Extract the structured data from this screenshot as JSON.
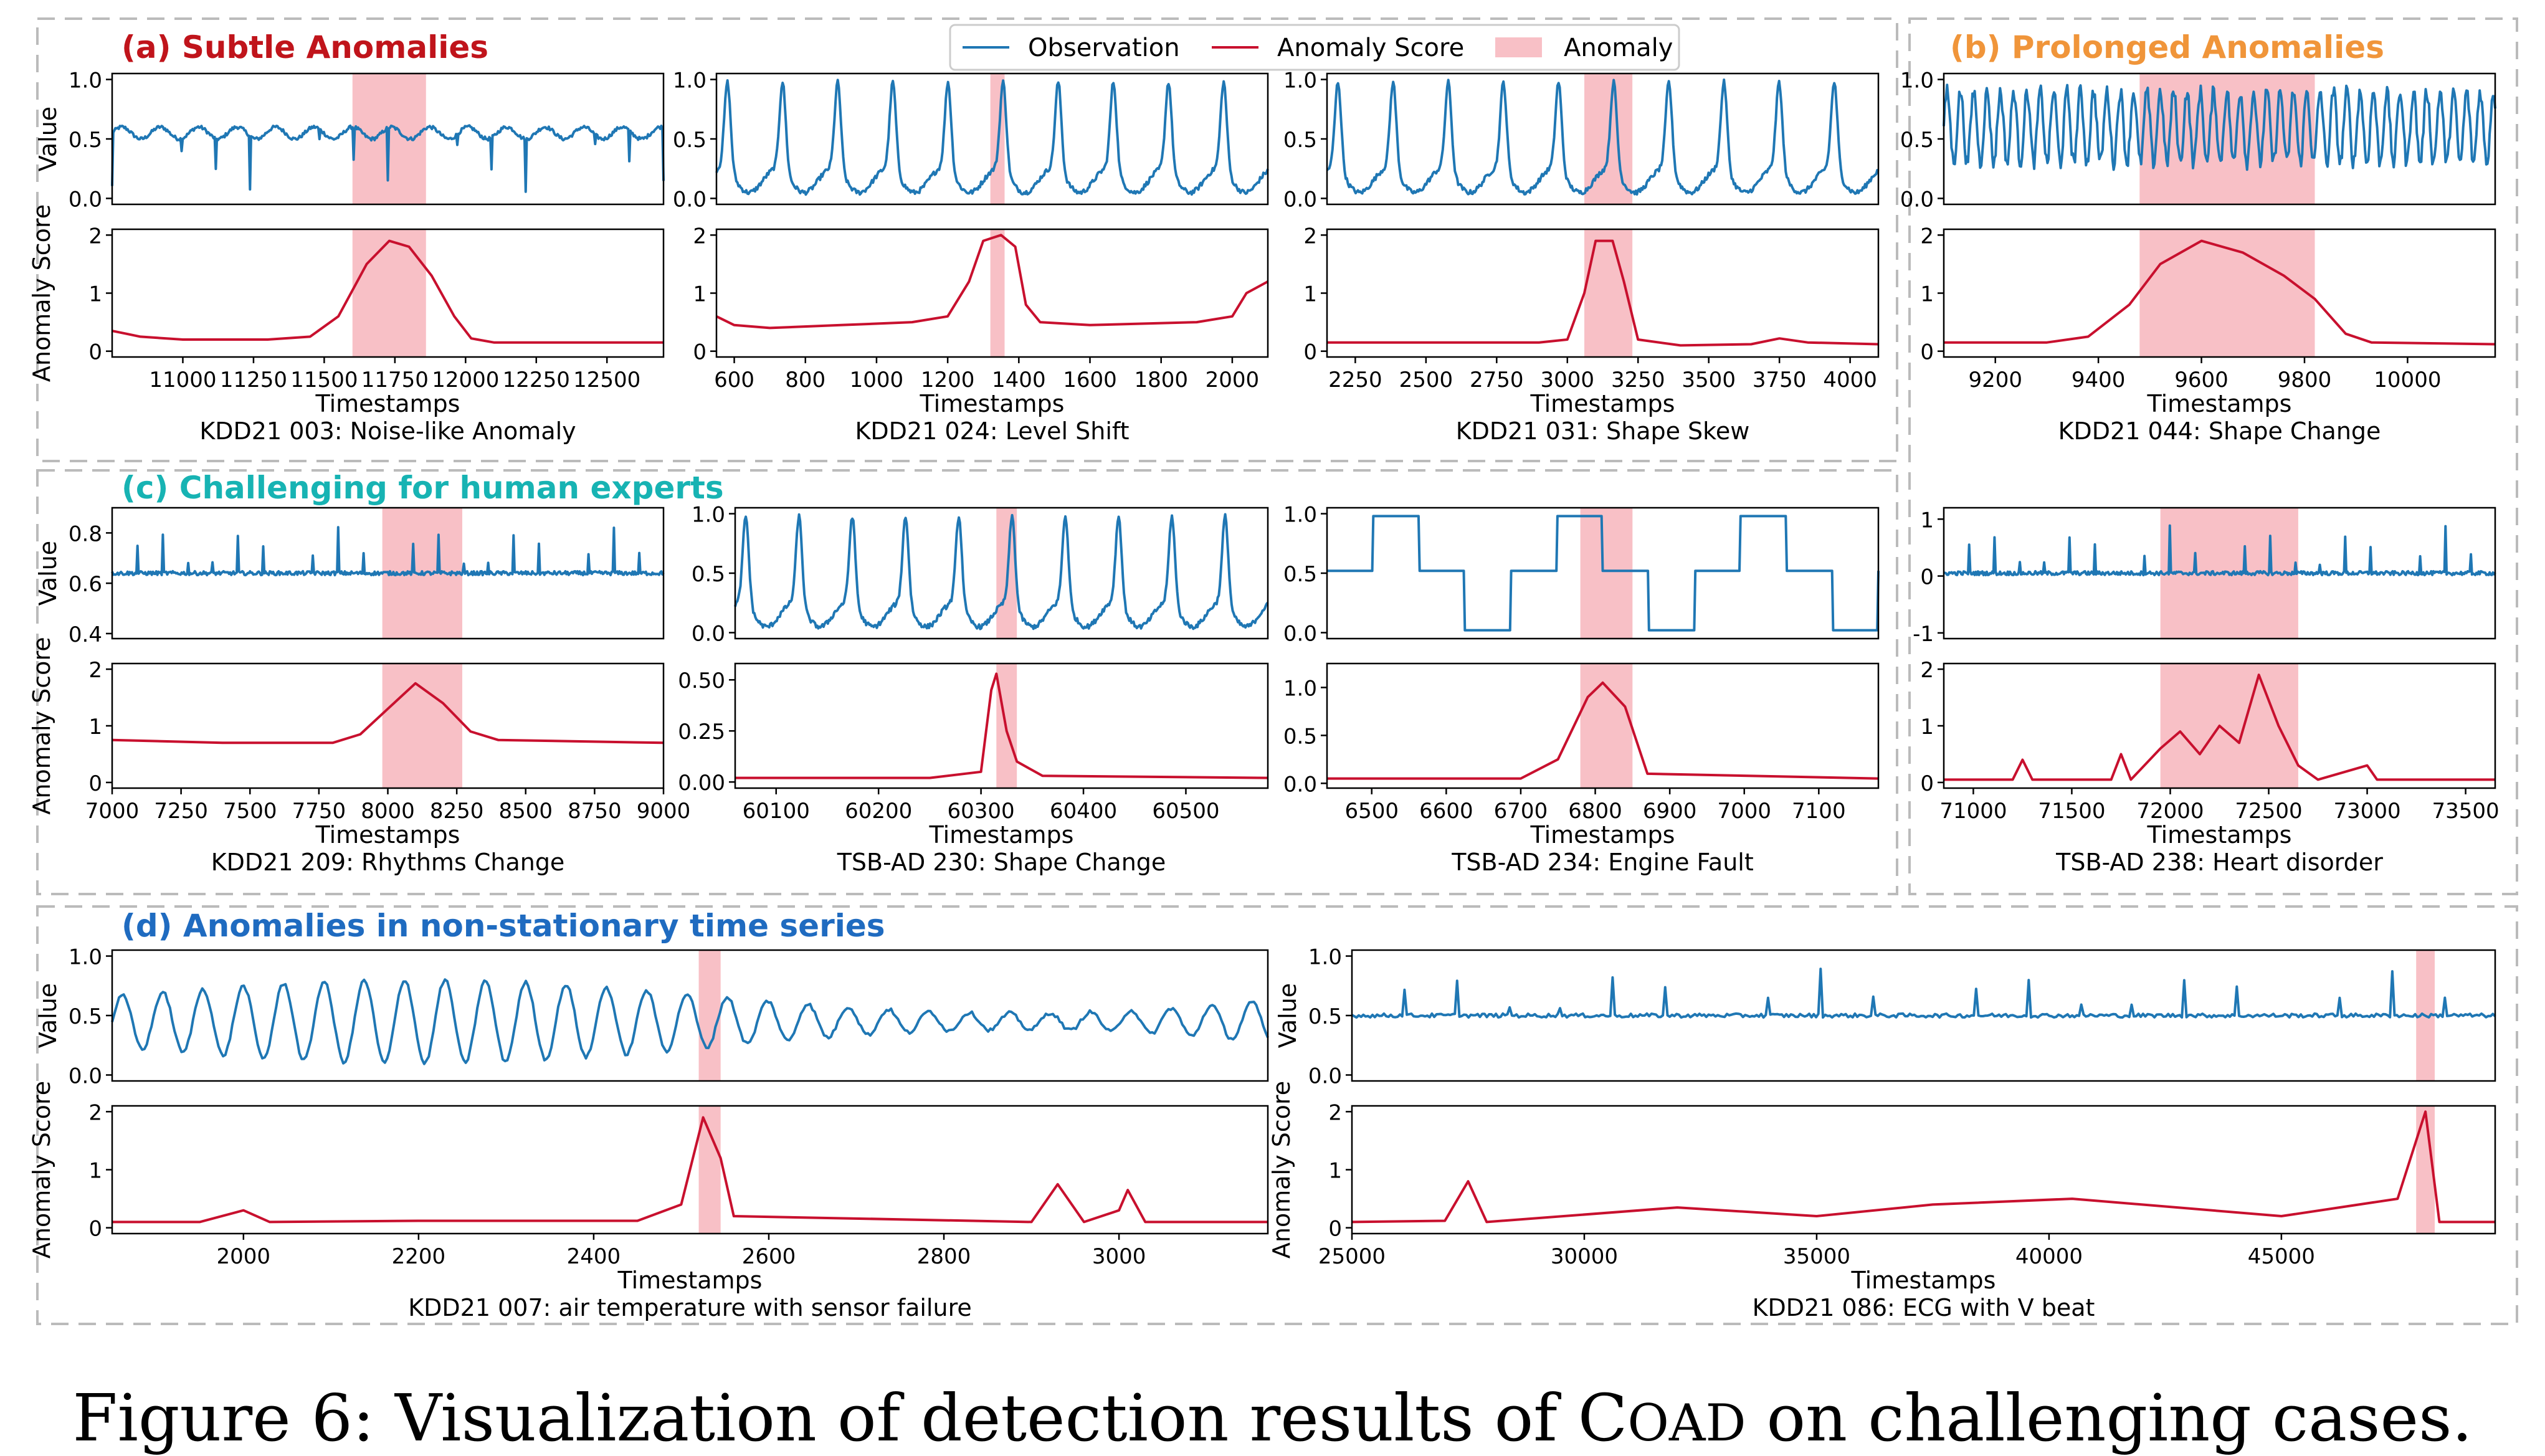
{
  "colors": {
    "observation": "#1f77b4",
    "score": "#c8102e",
    "anomaly_fill": "#f8c0c6",
    "group_a": "#c0141b",
    "group_b": "#f0953a",
    "group_c": "#17b3b3",
    "group_d": "#1f6bc0",
    "dash": "#bbbbbb"
  },
  "legend": {
    "observation": "Observation",
    "score": "Anomaly Score",
    "anomaly": "Anomaly"
  },
  "groups": {
    "a": "(a) Subtle Anomalies",
    "b": "(b) Prolonged Anomalies",
    "c": "(c) Challenging for human experts",
    "d": "(d) Anomalies in non-stationary time series"
  },
  "caption": "Figure 6: Visualization of detection results of COAD on challenging cases.",
  "labels": {
    "value": "Value",
    "score": "Anomaly Score",
    "x": "Timestamps"
  },
  "chart_data": [
    {
      "type": "line",
      "group": "a",
      "title": "KDD21 003: Noise-like Anomaly",
      "xlim": [
        10750,
        12700
      ],
      "x_ticks": [
        11000,
        11250,
        11500,
        11750,
        12000,
        12250,
        12500
      ],
      "anomaly": [
        11600,
        11860
      ],
      "observation": {
        "ylim": [
          -0.05,
          1.05
        ],
        "y_ticks": [
          0.0,
          0.5,
          1.0
        ],
        "pattern": "periodic spikes"
      },
      "score": {
        "ylim": [
          -0.1,
          2.1
        ],
        "y_ticks": [
          0,
          1,
          2
        ],
        "points": [
          [
            10750,
            0.35
          ],
          [
            10800,
            0.3
          ],
          [
            10850,
            0.25
          ],
          [
            11000,
            0.2
          ],
          [
            11300,
            0.2
          ],
          [
            11450,
            0.25
          ],
          [
            11550,
            0.6
          ],
          [
            11650,
            1.5
          ],
          [
            11730,
            1.9
          ],
          [
            11800,
            1.8
          ],
          [
            11880,
            1.3
          ],
          [
            11960,
            0.6
          ],
          [
            12020,
            0.22
          ],
          [
            12100,
            0.15
          ],
          [
            12700,
            0.15
          ]
        ]
      }
    },
    {
      "type": "line",
      "group": "a",
      "title": "KDD21 024: Level Shift",
      "xlim": [
        550,
        2100
      ],
      "x_ticks": [
        600,
        800,
        1000,
        1200,
        1400,
        1600,
        1800,
        2000
      ],
      "anomaly": [
        1320,
        1360
      ],
      "observation": {
        "ylim": [
          -0.05,
          1.05
        ],
        "y_ticks": [
          0.0,
          0.5,
          1.0
        ],
        "pattern": "periodic peaks"
      },
      "score": {
        "ylim": [
          -0.1,
          2.1
        ],
        "y_ticks": [
          0,
          1,
          2
        ],
        "points": [
          [
            550,
            0.6
          ],
          [
            600,
            0.45
          ],
          [
            700,
            0.4
          ],
          [
            900,
            0.45
          ],
          [
            1100,
            0.5
          ],
          [
            1200,
            0.6
          ],
          [
            1260,
            1.2
          ],
          [
            1300,
            1.9
          ],
          [
            1350,
            2.0
          ],
          [
            1390,
            1.8
          ],
          [
            1420,
            0.8
          ],
          [
            1460,
            0.5
          ],
          [
            1600,
            0.45
          ],
          [
            1900,
            0.5
          ],
          [
            2000,
            0.6
          ],
          [
            2040,
            1.0
          ],
          [
            2100,
            1.2
          ]
        ]
      }
    },
    {
      "type": "line",
      "group": "a",
      "title": "KDD21 031: Shape Skew",
      "xlim": [
        2150,
        4100
      ],
      "x_ticks": [
        2250,
        2500,
        2750,
        3000,
        3250,
        3500,
        3750,
        4000
      ],
      "anomaly": [
        3060,
        3230
      ],
      "observation": {
        "ylim": [
          -0.05,
          1.05
        ],
        "y_ticks": [
          0.0,
          0.5,
          1.0
        ],
        "pattern": "periodic peaks"
      },
      "score": {
        "ylim": [
          -0.1,
          2.1
        ],
        "y_ticks": [
          0,
          1,
          2
        ],
        "points": [
          [
            2150,
            0.15
          ],
          [
            2500,
            0.15
          ],
          [
            2900,
            0.15
          ],
          [
            3000,
            0.2
          ],
          [
            3060,
            1.0
          ],
          [
            3100,
            1.9
          ],
          [
            3160,
            1.9
          ],
          [
            3200,
            1.2
          ],
          [
            3250,
            0.2
          ],
          [
            3400,
            0.1
          ],
          [
            3650,
            0.12
          ],
          [
            3750,
            0.22
          ],
          [
            3850,
            0.15
          ],
          [
            4100,
            0.12
          ]
        ]
      }
    },
    {
      "type": "line",
      "group": "b",
      "title": "KDD21 044: Shape Change",
      "xlim": [
        9100,
        10170
      ],
      "x_ticks": [
        9200,
        9400,
        9600,
        9800,
        10000
      ],
      "anomaly": [
        9480,
        9820
      ],
      "observation": {
        "ylim": [
          -0.05,
          1.05
        ],
        "y_ticks": [
          0.0,
          0.5,
          1.0
        ],
        "pattern": "dense oscillation"
      },
      "score": {
        "ylim": [
          -0.1,
          2.1
        ],
        "y_ticks": [
          0,
          1,
          2
        ],
        "points": [
          [
            9100,
            0.15
          ],
          [
            9300,
            0.15
          ],
          [
            9380,
            0.25
          ],
          [
            9460,
            0.8
          ],
          [
            9520,
            1.5
          ],
          [
            9600,
            1.9
          ],
          [
            9680,
            1.7
          ],
          [
            9760,
            1.3
          ],
          [
            9820,
            0.9
          ],
          [
            9880,
            0.3
          ],
          [
            9930,
            0.15
          ],
          [
            10170,
            0.12
          ]
        ]
      }
    },
    {
      "type": "line",
      "group": "c",
      "title": "KDD21 209: Rhythms Change",
      "xlim": [
        7000,
        9000
      ],
      "x_ticks": [
        7000,
        7250,
        7500,
        7750,
        8000,
        8250,
        8500,
        8750,
        9000
      ],
      "anomaly": [
        7980,
        8270
      ],
      "observation": {
        "ylim": [
          0.38,
          0.9
        ],
        "y_ticks": [
          0.4,
          0.6,
          0.8
        ],
        "pattern": "ecg"
      },
      "score": {
        "ylim": [
          -0.1,
          2.1
        ],
        "y_ticks": [
          0,
          1,
          2
        ],
        "points": [
          [
            7000,
            0.75
          ],
          [
            7400,
            0.7
          ],
          [
            7800,
            0.7
          ],
          [
            7900,
            0.85
          ],
          [
            8000,
            1.3
          ],
          [
            8100,
            1.75
          ],
          [
            8200,
            1.4
          ],
          [
            8300,
            0.9
          ],
          [
            8400,
            0.75
          ],
          [
            9000,
            0.7
          ]
        ]
      }
    },
    {
      "type": "line",
      "group": "c",
      "title": "TSB-AD 230: Shape Change",
      "xlim": [
        60060,
        60580
      ],
      "x_ticks": [
        60100,
        60200,
        60300,
        60400,
        60500
      ],
      "anomaly": [
        60315,
        60335
      ],
      "observation": {
        "ylim": [
          -0.05,
          1.05
        ],
        "y_ticks": [
          0.0,
          0.5,
          1.0
        ],
        "pattern": "periodic peaks"
      },
      "score": {
        "ylim": [
          -0.03,
          0.58
        ],
        "y_ticks": [
          0.0,
          0.25,
          0.5
        ],
        "points": [
          [
            60060,
            0.02
          ],
          [
            60250,
            0.02
          ],
          [
            60300,
            0.05
          ],
          [
            60310,
            0.45
          ],
          [
            60315,
            0.53
          ],
          [
            60325,
            0.25
          ],
          [
            60335,
            0.1
          ],
          [
            60360,
            0.03
          ],
          [
            60580,
            0.02
          ]
        ]
      }
    },
    {
      "type": "line",
      "group": "c",
      "title": "TSB-AD 234: Engine Fault",
      "xlim": [
        6440,
        7180
      ],
      "x_ticks": [
        6500,
        6600,
        6700,
        6800,
        6900,
        7000,
        7100
      ],
      "anomaly": [
        6780,
        6850
      ],
      "observation": {
        "ylim": [
          -0.05,
          1.05
        ],
        "y_ticks": [
          0.0,
          0.5,
          1.0
        ],
        "pattern": "square wave"
      },
      "score": {
        "ylim": [
          -0.05,
          1.25
        ],
        "y_ticks": [
          0.0,
          0.5,
          1.0
        ],
        "points": [
          [
            6440,
            0.05
          ],
          [
            6700,
            0.05
          ],
          [
            6750,
            0.25
          ],
          [
            6790,
            0.9
          ],
          [
            6810,
            1.05
          ],
          [
            6840,
            0.8
          ],
          [
            6870,
            0.1
          ],
          [
            7180,
            0.05
          ]
        ]
      }
    },
    {
      "type": "line",
      "group": "b",
      "title": "TSB-AD 238: Heart disorder",
      "xlim": [
        70850,
        73650
      ],
      "x_ticks": [
        71000,
        71500,
        72000,
        72500,
        73000,
        73500
      ],
      "anomaly": [
        71950,
        72650
      ],
      "observation": {
        "ylim": [
          -1.1,
          1.2
        ],
        "y_ticks": [
          -1,
          0,
          1
        ],
        "pattern": "ecg"
      },
      "score": {
        "ylim": [
          -0.1,
          2.1
        ],
        "y_ticks": [
          0,
          1,
          2
        ],
        "points": [
          [
            70850,
            0.05
          ],
          [
            71200,
            0.05
          ],
          [
            71250,
            0.4
          ],
          [
            71300,
            0.05
          ],
          [
            71700,
            0.05
          ],
          [
            71750,
            0.5
          ],
          [
            71800,
            0.05
          ],
          [
            71950,
            0.6
          ],
          [
            72050,
            0.9
          ],
          [
            72150,
            0.5
          ],
          [
            72250,
            1.0
          ],
          [
            72350,
            0.7
          ],
          [
            72450,
            1.9
          ],
          [
            72550,
            1.0
          ],
          [
            72650,
            0.3
          ],
          [
            72750,
            0.05
          ],
          [
            73000,
            0.3
          ],
          [
            73050,
            0.05
          ],
          [
            73650,
            0.05
          ]
        ]
      }
    },
    {
      "type": "line",
      "group": "d",
      "title": "KDD21 007: air temperature with sensor failure",
      "xlim": [
        1850,
        3170
      ],
      "x_ticks": [
        2000,
        2200,
        2400,
        2600,
        2800,
        3000
      ],
      "anomaly": [
        2520,
        2545
      ],
      "observation": {
        "ylim": [
          -0.05,
          1.05
        ],
        "y_ticks": [
          0.0,
          0.5,
          1.0
        ],
        "pattern": "sinusoid"
      },
      "score": {
        "ylim": [
          -0.1,
          2.1
        ],
        "y_ticks": [
          0,
          1,
          2
        ],
        "points": [
          [
            1850,
            0.1
          ],
          [
            1950,
            0.1
          ],
          [
            2000,
            0.3
          ],
          [
            2030,
            0.1
          ],
          [
            2200,
            0.12
          ],
          [
            2450,
            0.12
          ],
          [
            2500,
            0.4
          ],
          [
            2525,
            1.9
          ],
          [
            2545,
            1.2
          ],
          [
            2560,
            0.2
          ],
          [
            2900,
            0.1
          ],
          [
            2930,
            0.75
          ],
          [
            2960,
            0.1
          ],
          [
            3000,
            0.3
          ],
          [
            3010,
            0.65
          ],
          [
            3030,
            0.1
          ],
          [
            3170,
            0.1
          ]
        ]
      }
    },
    {
      "type": "line",
      "group": "d",
      "title": "KDD21 086: ECG with V beat",
      "xlim": [
        25000,
        49600
      ],
      "x_ticks": [
        25000,
        30000,
        35000,
        40000,
        45000
      ],
      "anomaly": [
        47900,
        48300
      ],
      "observation": {
        "ylim": [
          -0.05,
          1.05
        ],
        "y_ticks": [
          0.0,
          0.5,
          1.0
        ],
        "pattern": "ecg"
      },
      "score": {
        "ylim": [
          -0.1,
          2.1
        ],
        "y_ticks": [
          0,
          1,
          2
        ],
        "points": [
          [
            25000,
            0.1
          ],
          [
            27000,
            0.12
          ],
          [
            27500,
            0.8
          ],
          [
            27900,
            0.1
          ],
          [
            32000,
            0.35
          ],
          [
            35000,
            0.2
          ],
          [
            37500,
            0.4
          ],
          [
            40500,
            0.5
          ],
          [
            45000,
            0.2
          ],
          [
            47500,
            0.5
          ],
          [
            48100,
            2.0
          ],
          [
            48400,
            0.1
          ],
          [
            49600,
            0.1
          ]
        ]
      }
    }
  ]
}
